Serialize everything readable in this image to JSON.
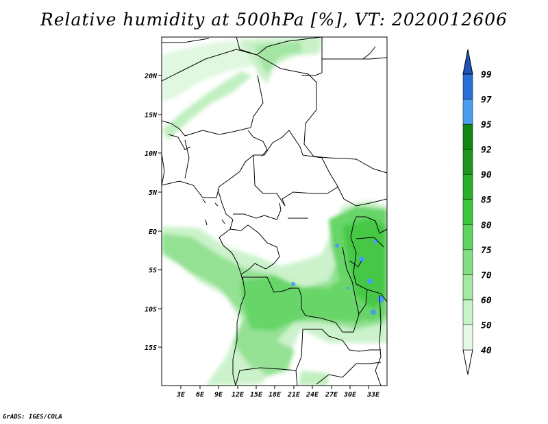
{
  "title": "Relative humidity at 500hPa [%], VT: 2020012606",
  "credit": "GrADS: IGES/COLA",
  "map": {
    "lon_range": [
      0,
      36
    ],
    "lat_range": [
      -20,
      25
    ],
    "lat_labels": [
      {
        "lat": 20,
        "text": "20N"
      },
      {
        "lat": 15,
        "text": "15N"
      },
      {
        "lat": 10,
        "text": "10N"
      },
      {
        "lat": 5,
        "text": "5N"
      },
      {
        "lat": 0,
        "text": "EQ"
      },
      {
        "lat": -5,
        "text": "5S"
      },
      {
        "lat": -10,
        "text": "10S"
      },
      {
        "lat": -15,
        "text": "15S"
      }
    ],
    "lon_labels": [
      {
        "lon": 3,
        "text": "3E"
      },
      {
        "lon": 6,
        "text": "6E"
      },
      {
        "lon": 9,
        "text": "9E"
      },
      {
        "lon": 12,
        "text": "12E"
      },
      {
        "lon": 15,
        "text": "15E"
      },
      {
        "lon": 18,
        "text": "18E"
      },
      {
        "lon": 21,
        "text": "21E"
      },
      {
        "lon": 24,
        "text": "24E"
      },
      {
        "lon": 27,
        "text": "27E"
      },
      {
        "lon": 30,
        "text": "30E"
      },
      {
        "lon": 33,
        "text": "33E"
      }
    ]
  },
  "colorbar": {
    "levels": [
      "40",
      "50",
      "60",
      "70",
      "75",
      "80",
      "85",
      "90",
      "92",
      "95",
      "97",
      "99"
    ],
    "colors": [
      "#ffffff",
      "#e5fae5",
      "#c8f2c8",
      "#a3e8a3",
      "#82df82",
      "#5fd35f",
      "#3cc63c",
      "#28ae28",
      "#1f951f",
      "#118611",
      "#4a9ef0",
      "#2a6fd6",
      "#1f52b8"
    ]
  },
  "colors": {
    "rh_light": "#dff7df",
    "rh_mid": "#8fe08f",
    "rh_high": "#4cc64c",
    "rh_very_high": "#1fa51f",
    "rh_saturated": "#4a9ef0",
    "border": "#000000"
  }
}
